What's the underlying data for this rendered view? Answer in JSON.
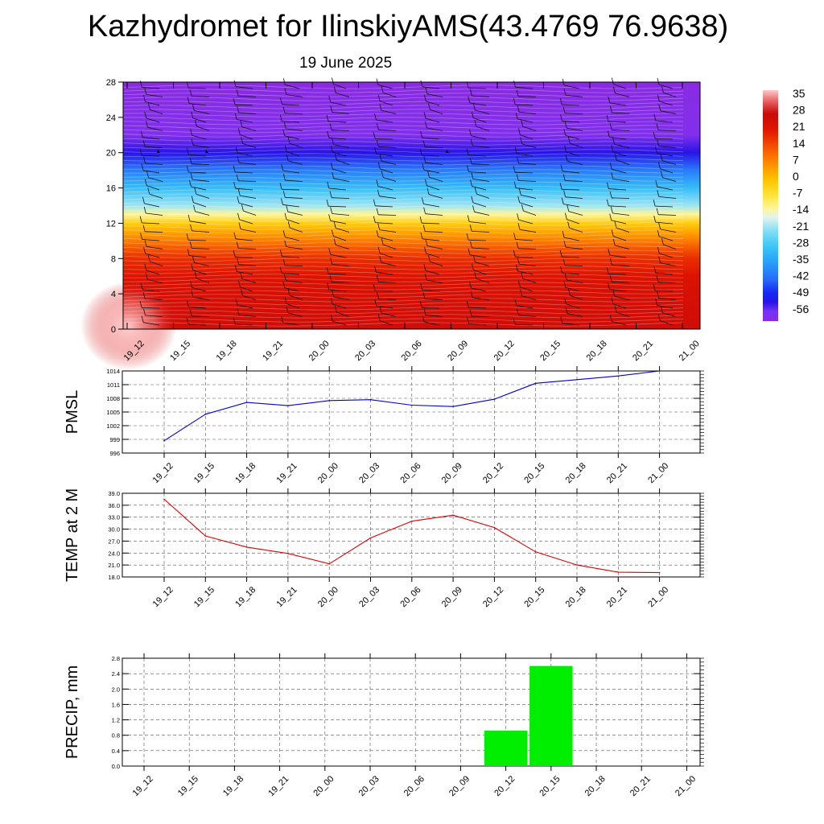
{
  "header": {
    "title": "Kazhydromet for IlinskiyAMS(43.4769 76.9638)",
    "subtitle": "19 June 2025"
  },
  "chart_data": [
    {
      "type": "heatmap",
      "title": "",
      "xlabel": "",
      "ylabel": "",
      "x": [
        "19_12",
        "19_15",
        "19_18",
        "19_21",
        "20_00",
        "20_03",
        "20_06",
        "20_09",
        "20_12",
        "20_15",
        "20_18",
        "20_21",
        "21_00"
      ],
      "yticks": [
        0,
        4,
        8,
        12,
        16,
        20,
        24,
        28
      ],
      "ylim": [
        0,
        28
      ],
      "colorbar": {
        "labels": [
          35,
          28,
          21,
          14,
          7,
          0,
          -7,
          -14,
          -21,
          -28,
          -35,
          -42,
          -49,
          -56
        ],
        "range": [
          -60,
          38
        ]
      },
      "levels": [
        {
          "y": 0,
          "value": 26
        },
        {
          "y": 2,
          "value": 25
        },
        {
          "y": 4,
          "value": 24
        },
        {
          "y": 6,
          "value": 22
        },
        {
          "y": 8,
          "value": 18
        },
        {
          "y": 9,
          "value": 14
        },
        {
          "y": 10,
          "value": 9
        },
        {
          "y": 11,
          "value": 4
        },
        {
          "y": 12,
          "value": -2
        },
        {
          "y": 13,
          "value": -12
        },
        {
          "y": 14,
          "value": -20
        },
        {
          "y": 16,
          "value": -30
        },
        {
          "y": 18,
          "value": -40
        },
        {
          "y": 20,
          "value": -52
        },
        {
          "y": 22,
          "value": -58
        },
        {
          "y": 28,
          "value": -60
        }
      ],
      "grid": false,
      "wind_barbs": true
    },
    {
      "type": "line",
      "ylabel": "PMSL",
      "x": [
        "19_12",
        "19_15",
        "19_18",
        "19_21",
        "20_00",
        "20_03",
        "20_06",
        "20_09",
        "20_12",
        "20_15",
        "20_18",
        "20_21",
        "21_00"
      ],
      "yticks": [
        "996",
        "999",
        "1002",
        "1005",
        "1008",
        "1011",
        "1014"
      ],
      "ylim": [
        996,
        1014
      ],
      "series": [
        {
          "values": [
            998.7,
            1004.5,
            1007.1,
            1006.4,
            1007.5,
            1007.7,
            1006.5,
            1006.2,
            1007.8,
            1011.3,
            1012.1,
            1012.9,
            1014.0
          ],
          "color": "#0000cc"
        }
      ],
      "grid": true
    },
    {
      "type": "line",
      "ylabel": "TEMP at 2 M",
      "x": [
        "19_12",
        "19_15",
        "19_18",
        "19_21",
        "20_00",
        "20_03",
        "20_06",
        "20_09",
        "20_12",
        "20_15",
        "20_18",
        "20_21",
        "21_00"
      ],
      "yticks": [
        "18.0",
        "21.0",
        "24.0",
        "27.0",
        "30.0",
        "33.0",
        "36.0",
        "39.0"
      ],
      "ylim": [
        18,
        39
      ],
      "series": [
        {
          "values": [
            37.5,
            28.3,
            25.5,
            23.9,
            21.3,
            27.8,
            32.0,
            33.5,
            30.4,
            24.3,
            21.0,
            19.2,
            19.1
          ],
          "color": "#dd0000"
        }
      ],
      "grid": true
    },
    {
      "type": "bar",
      "ylabel": "PRECIP, mm",
      "categories": [
        "19_12",
        "19_15",
        "19_18",
        "19_21",
        "20_00",
        "20_03",
        "20_06",
        "20_09",
        "20_12",
        "20_15",
        "20_18",
        "20_21",
        "21_00"
      ],
      "values": [
        0,
        0,
        0,
        0,
        0,
        0,
        0,
        0,
        0.92,
        2.6,
        0,
        0,
        0
      ],
      "yticks": [
        "0.0",
        "0.4",
        "0.8",
        "1.2",
        "1.6",
        "2.0",
        "2.4",
        "2.8"
      ],
      "ylim": [
        0,
        2.8
      ],
      "color": "#00ee00",
      "grid": true
    }
  ]
}
